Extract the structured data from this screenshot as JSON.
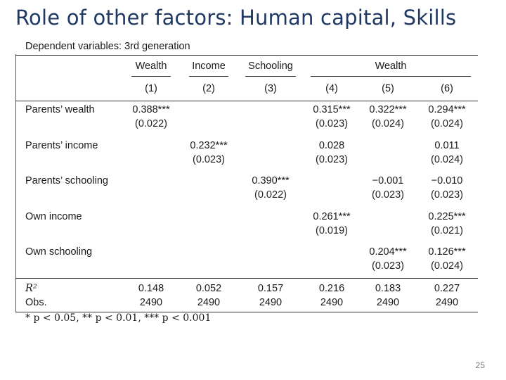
{
  "slide": {
    "title": "Role of other factors: Human capital, Skills",
    "page_number": "25"
  },
  "table": {
    "dependent_label": "Dependent variables: 3rd generation",
    "groups": [
      "Wealth",
      "Income",
      "Schooling",
      "Wealth"
    ],
    "columns": [
      "(1)",
      "(2)",
      "(3)",
      "(4)",
      "(5)",
      "(6)"
    ],
    "rows": [
      {
        "label": "Parents’ wealth",
        "coef": [
          "0.388***",
          "",
          "",
          "0.315***",
          "0.322***",
          "0.294***"
        ],
        "se": [
          "(0.022)",
          "",
          "",
          "(0.023)",
          "(0.024)",
          "(0.024)"
        ]
      },
      {
        "label": "Parents’ income",
        "coef": [
          "",
          "0.232***",
          "",
          "0.028",
          "",
          "0.011"
        ],
        "se": [
          "",
          "(0.023)",
          "",
          "(0.023)",
          "",
          "(0.024)"
        ]
      },
      {
        "label": "Parents’ schooling",
        "coef": [
          "",
          "",
          "0.390***",
          "",
          "−0.001",
          "−0.010"
        ],
        "se": [
          "",
          "",
          "(0.022)",
          "",
          "(0.023)",
          "(0.023)"
        ]
      },
      {
        "label": "Own income",
        "coef": [
          "",
          "",
          "",
          "0.261***",
          "",
          "0.225***"
        ],
        "se": [
          "",
          "",
          "",
          "(0.019)",
          "",
          "(0.021)"
        ]
      },
      {
        "label": "Own schooling",
        "coef": [
          "",
          "",
          "",
          "",
          "0.204***",
          "0.126***"
        ],
        "se": [
          "",
          "",
          "",
          "",
          "(0.023)",
          "(0.024)"
        ]
      }
    ],
    "r2_label": "R²",
    "obs_label": "Obs.",
    "r2": [
      "0.148",
      "0.052",
      "0.157",
      "0.216",
      "0.183",
      "0.227"
    ],
    "obs": [
      "2490",
      "2490",
      "2490",
      "2490",
      "2490",
      "2490"
    ],
    "footnote": "* p < 0.05, ** p < 0.01, *** p < 0.001"
  }
}
